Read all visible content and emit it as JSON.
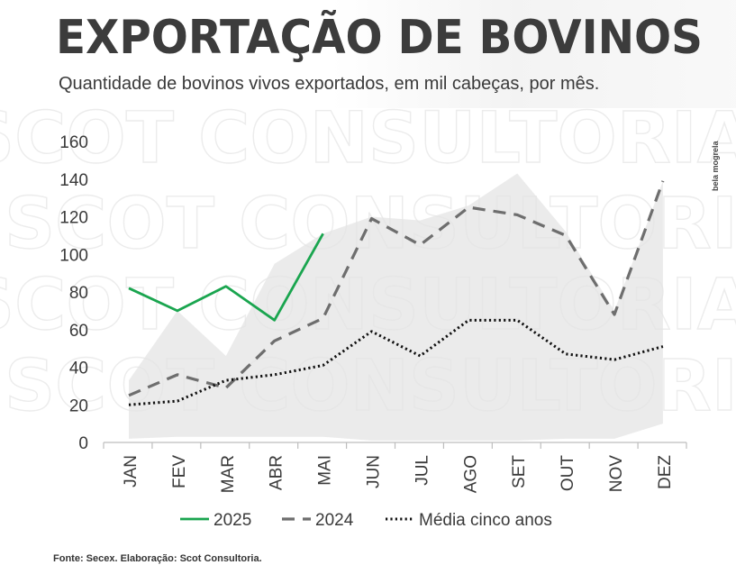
{
  "header": {
    "title": "EXPORTAÇÃO DE BOVINOS",
    "subtitle": "Quantidade de bovinos vivos exportados, em mil cabeças, por mês."
  },
  "footer": {
    "source": "Fonte: Secex. Elaboração: Scot Consultoria.",
    "credit": "bela mogrela"
  },
  "watermark": {
    "text": "SCOT CONSULTORIA"
  },
  "chart_data": {
    "type": "line",
    "categories": [
      "JAN",
      "FEV",
      "MAR",
      "ABR",
      "MAI",
      "JUN",
      "JUL",
      "AGO",
      "SET",
      "OUT",
      "NOV",
      "DEZ"
    ],
    "ylim": [
      0,
      160
    ],
    "yticks": [
      0,
      20,
      40,
      60,
      80,
      100,
      120,
      140,
      160
    ],
    "grid": false,
    "legend_position": "bottom",
    "band": {
      "upper": [
        33,
        70,
        46,
        95,
        111,
        120,
        118,
        126,
        143,
        112,
        70,
        139
      ],
      "lower": [
        2,
        3,
        3,
        3,
        3,
        1,
        1,
        1,
        1,
        2,
        2,
        10
      ]
    },
    "series": [
      {
        "name": "2025",
        "style": "solid",
        "color": "#1aa54f",
        "values": [
          82,
          70,
          83,
          65,
          111,
          null,
          null,
          null,
          null,
          null,
          null,
          null
        ]
      },
      {
        "name": "2024",
        "style": "dashed",
        "color": "#6e6e6e",
        "values": [
          25,
          36,
          29,
          54,
          66,
          119,
          105,
          125,
          121,
          110,
          68,
          139
        ]
      },
      {
        "name": "Média cinco anos",
        "style": "dotted",
        "color": "#111111",
        "values": [
          20,
          22,
          33,
          36,
          41,
          59,
          46,
          65,
          65,
          47,
          44,
          51
        ]
      }
    ]
  }
}
